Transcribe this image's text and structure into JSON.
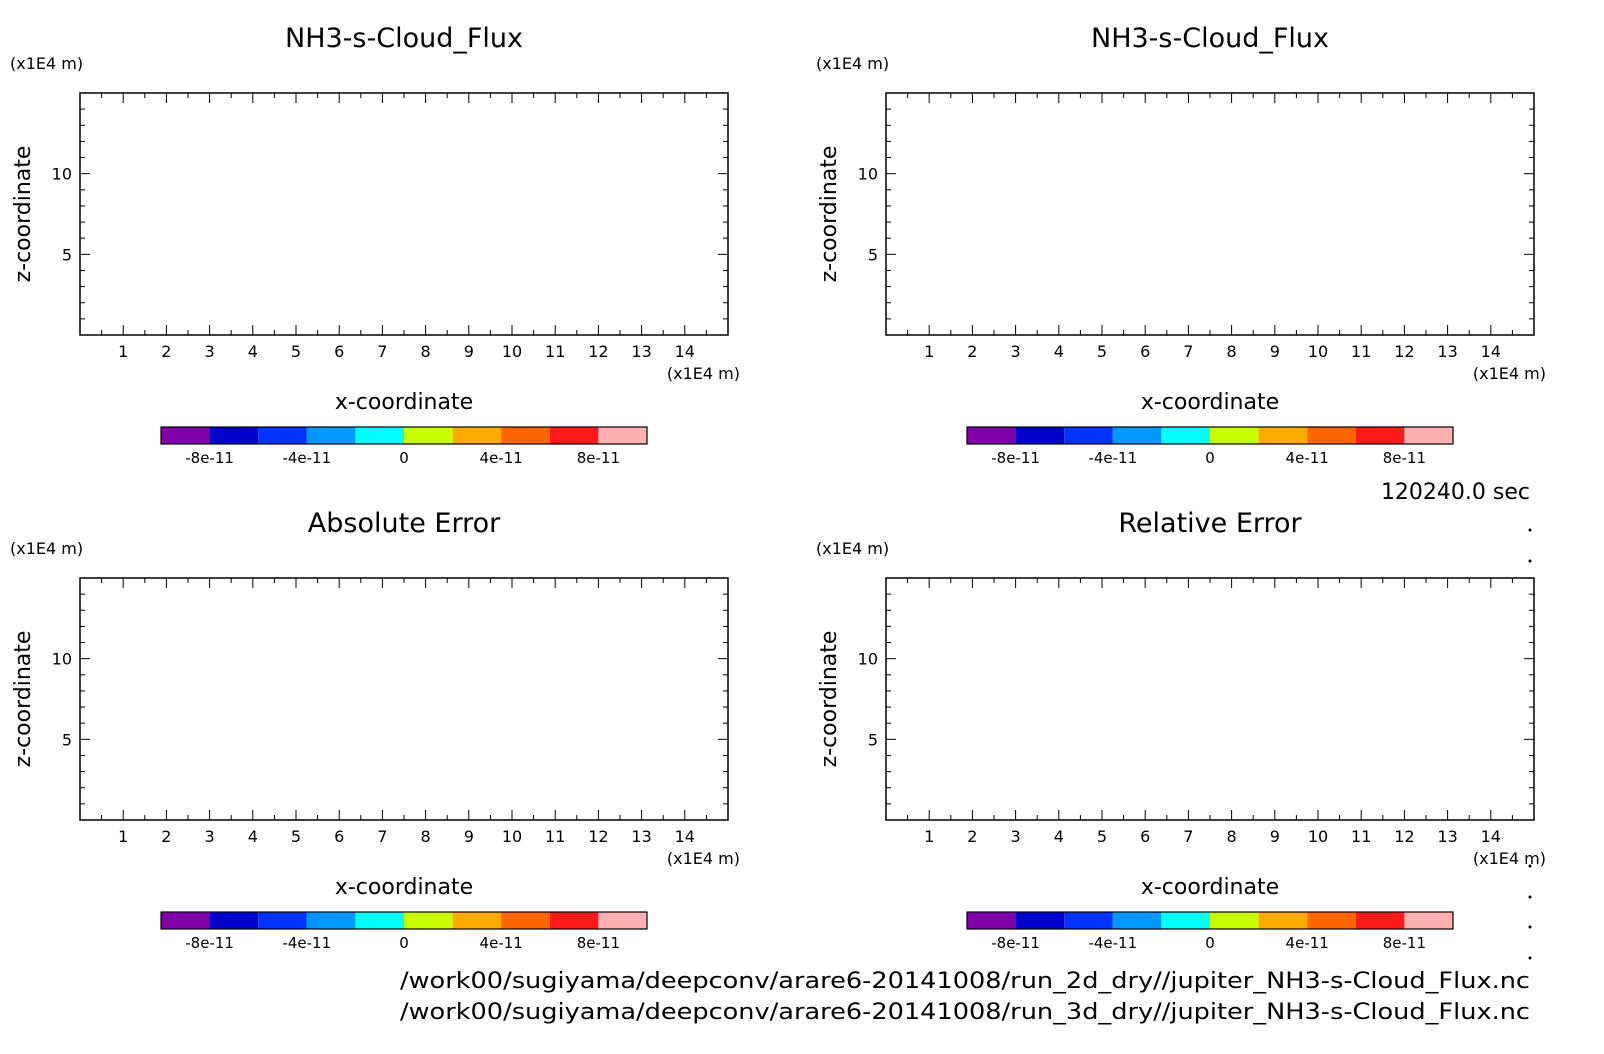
{
  "time_label": "120240.0 sec",
  "files": [
    "/work00/sugiyama/deepconv/arare6-20141008/run_2d_dry//jupiter_NH3-s-Cloud_Flux.nc",
    "/work00/sugiyama/deepconv/arare6-20141008/run_3d_dry//jupiter_NH3-s-Cloud_Flux.nc"
  ],
  "colorbar": {
    "colors": [
      "#7f00a8",
      "#0000cc",
      "#0033ff",
      "#0099ff",
      "#00ffff",
      "#c8ff00",
      "#ffaa00",
      "#ff6600",
      "#ff1a1a",
      "#ffb0b0"
    ],
    "boundaries": [
      -1e-10,
      -8e-11,
      -6e-11,
      -4e-11,
      -2e-11,
      0,
      2e-11,
      4e-11,
      6e-11,
      8e-11,
      1e-10
    ],
    "tick_values": [
      -8e-11,
      -4e-11,
      0,
      4e-11,
      8e-11
    ],
    "tick_labels": [
      "-8e-11",
      "-4e-11",
      "0",
      "4e-11",
      "8e-11"
    ]
  },
  "chart_data": [
    {
      "type": "heatmap",
      "title": "NH3-s-Cloud_Flux",
      "xlabel": "x-coordinate",
      "ylabel": "z-coordinate",
      "x_unit": "(x1E4 m)",
      "y_unit": "(x1E4 m)",
      "xlim": [
        0,
        15
      ],
      "ylim": [
        0,
        15
      ],
      "x_ticks": [
        1,
        2,
        3,
        4,
        5,
        6,
        7,
        8,
        9,
        10,
        11,
        12,
        13,
        14
      ],
      "y_ticks": [
        5,
        10
      ],
      "values": []
    },
    {
      "type": "heatmap",
      "title": "NH3-s-Cloud_Flux",
      "xlabel": "x-coordinate",
      "ylabel": "z-coordinate",
      "x_unit": "(x1E4 m)",
      "y_unit": "(x1E4 m)",
      "xlim": [
        0,
        15
      ],
      "ylim": [
        0,
        15
      ],
      "x_ticks": [
        1,
        2,
        3,
        4,
        5,
        6,
        7,
        8,
        9,
        10,
        11,
        12,
        13,
        14
      ],
      "y_ticks": [
        5,
        10
      ],
      "values": []
    },
    {
      "type": "heatmap",
      "title": "Absolute Error",
      "xlabel": "x-coordinate",
      "ylabel": "z-coordinate",
      "x_unit": "(x1E4 m)",
      "y_unit": "(x1E4 m)",
      "xlim": [
        0,
        15
      ],
      "ylim": [
        0,
        15
      ],
      "x_ticks": [
        1,
        2,
        3,
        4,
        5,
        6,
        7,
        8,
        9,
        10,
        11,
        12,
        13,
        14
      ],
      "y_ticks": [
        5,
        10
      ],
      "values": []
    },
    {
      "type": "heatmap",
      "title": "Relative Error",
      "xlabel": "x-coordinate",
      "ylabel": "z-coordinate",
      "x_unit": "(x1E4 m)",
      "y_unit": "(x1E4 m)",
      "xlim": [
        0,
        15
      ],
      "ylim": [
        0,
        15
      ],
      "x_ticks": [
        1,
        2,
        3,
        4,
        5,
        6,
        7,
        8,
        9,
        10,
        11,
        12,
        13,
        14
      ],
      "y_ticks": [
        5,
        10
      ],
      "values": []
    }
  ]
}
